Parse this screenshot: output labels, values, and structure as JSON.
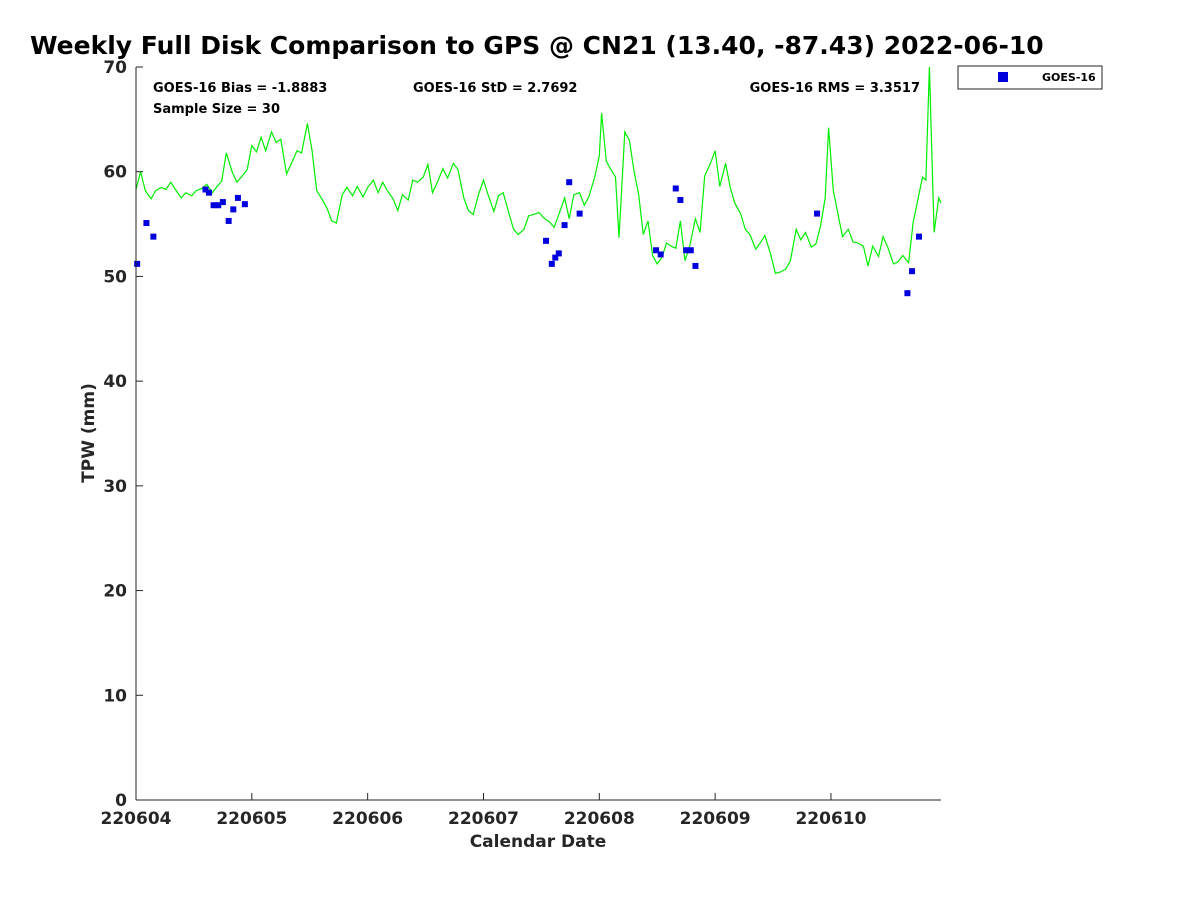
{
  "chart_data": {
    "type": "scatter",
    "title": "Weekly Full Disk Comparison to GPS @ CN21 (13.40, -87.43) 2022-06-10",
    "xlabel": "Calendar Date",
    "ylabel": "TPW (mm)",
    "xlim": [
      0,
      6.95
    ],
    "ylim": [
      0,
      70
    ],
    "x_ticks": [
      0,
      1,
      2,
      3,
      4,
      5,
      6
    ],
    "x_tick_labels": [
      "220604",
      "220605",
      "220606",
      "220607",
      "220608",
      "220609",
      "220610"
    ],
    "y_ticks": [
      0,
      10,
      20,
      30,
      40,
      50,
      60,
      70
    ],
    "y_tick_labels": [
      "0",
      "10",
      "20",
      "30",
      "40",
      "50",
      "60",
      "70"
    ],
    "grid": false,
    "legend_position": "outside-top-right",
    "stats": {
      "bias": "GOES-16 Bias = -1.8883",
      "std": "GOES-16 StD = 2.7692",
      "rms": "GOES-16 RMS = 3.3517",
      "sample": "Sample Size = 30"
    },
    "series": [
      {
        "name": "GOES-16",
        "kind": "scatter",
        "color": "#0000dd",
        "marker": "square",
        "points": [
          [
            0.01,
            51.2
          ],
          [
            0.09,
            55.1
          ],
          [
            0.15,
            53.8
          ],
          [
            0.6,
            58.3
          ],
          [
            0.63,
            58.0
          ],
          [
            0.67,
            56.8
          ],
          [
            0.71,
            56.8
          ],
          [
            0.75,
            57.1
          ],
          [
            0.8,
            55.3
          ],
          [
            0.84,
            56.4
          ],
          [
            0.88,
            57.5
          ],
          [
            0.94,
            56.9
          ],
          [
            3.54,
            53.4
          ],
          [
            3.59,
            51.2
          ],
          [
            3.62,
            51.8
          ],
          [
            3.65,
            52.2
          ],
          [
            3.7,
            54.9
          ],
          [
            3.74,
            59.0
          ],
          [
            3.83,
            56.0
          ],
          [
            4.49,
            52.5
          ],
          [
            4.53,
            52.1
          ],
          [
            4.66,
            58.4
          ],
          [
            4.7,
            57.3
          ],
          [
            4.75,
            52.5
          ],
          [
            4.79,
            52.5
          ],
          [
            4.83,
            51.0
          ],
          [
            5.88,
            56.0
          ],
          [
            6.66,
            48.4
          ],
          [
            6.7,
            50.5
          ],
          [
            6.76,
            53.8
          ]
        ]
      },
      {
        "name": "",
        "kind": "line",
        "color": "#00ee00",
        "points": [
          [
            0.0,
            58.3
          ],
          [
            0.04,
            60.0
          ],
          [
            0.08,
            58.2
          ],
          [
            0.13,
            57.4
          ],
          [
            0.17,
            58.2
          ],
          [
            0.22,
            58.5
          ],
          [
            0.26,
            58.3
          ],
          [
            0.3,
            59.0
          ],
          [
            0.34,
            58.3
          ],
          [
            0.39,
            57.5
          ],
          [
            0.43,
            58.0
          ],
          [
            0.48,
            57.7
          ],
          [
            0.52,
            58.2
          ],
          [
            0.57,
            58.4
          ],
          [
            0.61,
            58.8
          ],
          [
            0.66,
            58.0
          ],
          [
            0.7,
            58.6
          ],
          [
            0.74,
            59.1
          ],
          [
            0.78,
            61.8
          ],
          [
            0.83,
            60.0
          ],
          [
            0.87,
            59.0
          ],
          [
            0.91,
            59.5
          ],
          [
            0.96,
            60.2
          ],
          [
            1.0,
            62.5
          ],
          [
            1.04,
            61.9
          ],
          [
            1.08,
            63.3
          ],
          [
            1.12,
            62.0
          ],
          [
            1.17,
            63.8
          ],
          [
            1.21,
            62.8
          ],
          [
            1.25,
            63.1
          ],
          [
            1.3,
            59.8
          ],
          [
            1.35,
            61.0
          ],
          [
            1.39,
            62.0
          ],
          [
            1.43,
            61.8
          ],
          [
            1.48,
            64.6
          ],
          [
            1.52,
            62.0
          ],
          [
            1.56,
            58.2
          ],
          [
            1.6,
            57.5
          ],
          [
            1.65,
            56.5
          ],
          [
            1.69,
            55.3
          ],
          [
            1.73,
            55.1
          ],
          [
            1.78,
            57.8
          ],
          [
            1.82,
            58.5
          ],
          [
            1.87,
            57.7
          ],
          [
            1.91,
            58.6
          ],
          [
            1.96,
            57.6
          ],
          [
            2.0,
            58.5
          ],
          [
            2.05,
            59.2
          ],
          [
            2.09,
            58.0
          ],
          [
            2.13,
            59.0
          ],
          [
            2.17,
            58.2
          ],
          [
            2.22,
            57.4
          ],
          [
            2.26,
            56.3
          ],
          [
            2.3,
            57.8
          ],
          [
            2.35,
            57.3
          ],
          [
            2.39,
            59.2
          ],
          [
            2.43,
            59.0
          ],
          [
            2.48,
            59.5
          ],
          [
            2.52,
            60.7
          ],
          [
            2.56,
            58.0
          ],
          [
            2.61,
            59.2
          ],
          [
            2.65,
            60.3
          ],
          [
            2.69,
            59.4
          ],
          [
            2.74,
            60.8
          ],
          [
            2.78,
            60.2
          ],
          [
            2.83,
            57.5
          ],
          [
            2.87,
            56.3
          ],
          [
            2.91,
            55.9
          ],
          [
            2.96,
            57.9
          ],
          [
            3.0,
            59.2
          ],
          [
            3.04,
            57.8
          ],
          [
            3.09,
            56.2
          ],
          [
            3.13,
            57.7
          ],
          [
            3.17,
            58.0
          ],
          [
            3.22,
            56.0
          ],
          [
            3.26,
            54.5
          ],
          [
            3.3,
            54.0
          ],
          [
            3.35,
            54.5
          ],
          [
            3.39,
            55.8
          ],
          [
            3.43,
            55.9
          ],
          [
            3.48,
            56.1
          ],
          [
            3.52,
            55.6
          ],
          [
            3.57,
            55.2
          ],
          [
            3.61,
            54.7
          ],
          [
            3.65,
            55.9
          ],
          [
            3.7,
            57.5
          ],
          [
            3.74,
            55.5
          ],
          [
            3.78,
            57.8
          ],
          [
            3.83,
            58.0
          ],
          [
            3.87,
            56.8
          ],
          [
            3.91,
            57.6
          ],
          [
            3.96,
            59.5
          ],
          [
            4.0,
            61.5
          ],
          [
            4.02,
            65.6
          ],
          [
            4.06,
            61.0
          ],
          [
            4.1,
            60.2
          ],
          [
            4.14,
            59.5
          ],
          [
            4.17,
            53.7
          ],
          [
            4.22,
            63.8
          ],
          [
            4.26,
            63.0
          ],
          [
            4.3,
            60.0
          ],
          [
            4.34,
            57.8
          ],
          [
            4.38,
            54.0
          ],
          [
            4.42,
            55.3
          ],
          [
            4.46,
            52.0
          ],
          [
            4.5,
            51.2
          ],
          [
            4.54,
            51.8
          ],
          [
            4.58,
            53.2
          ],
          [
            4.62,
            52.9
          ],
          [
            4.66,
            52.7
          ],
          [
            4.7,
            55.3
          ],
          [
            4.74,
            51.5
          ],
          [
            4.78,
            52.9
          ],
          [
            4.83,
            55.5
          ],
          [
            4.87,
            54.2
          ],
          [
            4.91,
            59.6
          ],
          [
            4.96,
            60.8
          ],
          [
            5.0,
            62.0
          ],
          [
            5.04,
            58.6
          ],
          [
            5.09,
            60.8
          ],
          [
            5.13,
            58.5
          ],
          [
            5.17,
            57.0
          ],
          [
            5.22,
            56.0
          ],
          [
            5.26,
            54.5
          ],
          [
            5.3,
            54.0
          ],
          [
            5.35,
            52.6
          ],
          [
            5.39,
            53.2
          ],
          [
            5.43,
            53.9
          ],
          [
            5.48,
            52.1
          ],
          [
            5.52,
            50.3
          ],
          [
            5.56,
            50.4
          ],
          [
            5.61,
            50.7
          ],
          [
            5.65,
            51.5
          ],
          [
            5.7,
            54.5
          ],
          [
            5.74,
            53.5
          ],
          [
            5.78,
            54.2
          ],
          [
            5.83,
            52.8
          ],
          [
            5.87,
            53.1
          ],
          [
            5.91,
            54.8
          ],
          [
            5.95,
            57.5
          ],
          [
            5.98,
            64.2
          ],
          [
            6.02,
            58.2
          ],
          [
            6.06,
            56.0
          ],
          [
            6.1,
            53.8
          ],
          [
            6.15,
            54.5
          ],
          [
            6.19,
            53.3
          ],
          [
            6.23,
            53.2
          ],
          [
            6.28,
            52.9
          ],
          [
            6.32,
            51.0
          ],
          [
            6.36,
            52.9
          ],
          [
            6.41,
            51.9
          ],
          [
            6.45,
            53.8
          ],
          [
            6.49,
            52.8
          ],
          [
            6.54,
            51.2
          ],
          [
            6.58,
            51.4
          ],
          [
            6.62,
            52.0
          ],
          [
            6.67,
            51.3
          ],
          [
            6.71,
            55.2
          ],
          [
            6.75,
            57.3
          ],
          [
            6.79,
            59.5
          ],
          [
            6.82,
            59.2
          ],
          [
            6.85,
            70.0
          ],
          [
            6.89,
            54.2
          ],
          [
            6.93,
            57.5
          ],
          [
            6.95,
            57.0
          ]
        ]
      }
    ]
  }
}
